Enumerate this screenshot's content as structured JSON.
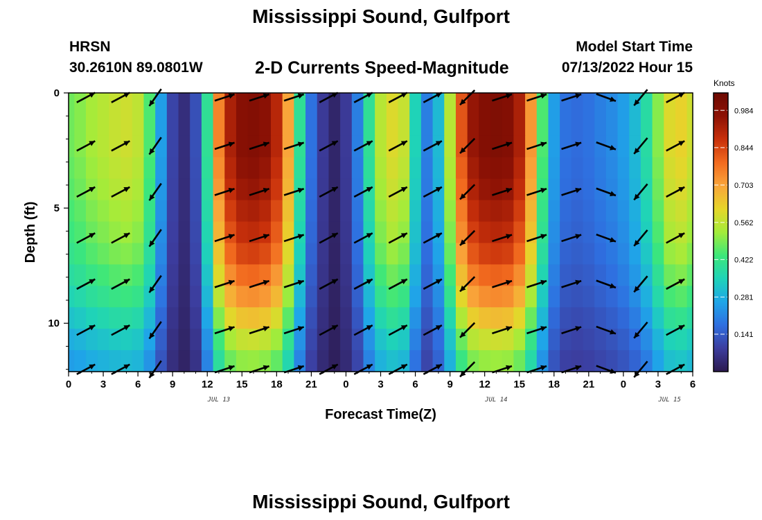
{
  "header": {
    "title": "Mississippi Sound, Gulfport",
    "station": "HRSN",
    "coords": "30.2610N  89.0801W",
    "plot_title": "2-D Currents Speed-Magnitude",
    "start_label": "Model Start Time",
    "start_value": "07/13/2022 Hour 15"
  },
  "footer": {
    "title": "Mississippi Sound, Gulfport"
  },
  "chart_data": {
    "type": "heatmap",
    "title": "2-D Currents Speed-Magnitude",
    "xlabel": "Forecast Time(Z)",
    "ylabel": "Depth (ft)",
    "x_ticks": [
      "0",
      "3",
      "6",
      "9",
      "12",
      "15",
      "18",
      "21",
      "0",
      "3",
      "6",
      "9",
      "12",
      "15",
      "18",
      "21",
      "0",
      "3",
      "6"
    ],
    "y_ticks": [
      "0",
      "5",
      "10"
    ],
    "date_labels": [
      {
        "label": "JUL 13",
        "hour": 13
      },
      {
        "label": "JUL 14",
        "hour": 37
      },
      {
        "label": "JUL 15",
        "hour": 52
      }
    ],
    "x_range_hours": [
      0,
      54
    ],
    "y_range_ft": [
      0,
      12.1
    ],
    "colorbar": {
      "unit": "Knots",
      "ticks": [
        "0.984",
        "0.844",
        "0.703",
        "0.562",
        "0.422",
        "0.281",
        "0.141"
      ],
      "range": [
        0.0,
        1.05
      ],
      "colors": [
        "#2c1a4f",
        "#3c3d9e",
        "#2f6fe0",
        "#1fa6e8",
        "#1fd3b8",
        "#3de77a",
        "#a3ec3a",
        "#e6d62a",
        "#f9a53a",
        "#f26b1f",
        "#c8300b",
        "#8d1205",
        "#6d0a02"
      ]
    },
    "hourly_surface_speed_knots": [
      0.48,
      0.5,
      0.53,
      0.55,
      0.57,
      0.58,
      0.56,
      0.45,
      0.25,
      0.1,
      0.05,
      0.12,
      0.4,
      0.75,
      0.92,
      0.98,
      0.99,
      0.97,
      0.9,
      0.7,
      0.4,
      0.18,
      0.08,
      0.03,
      0.08,
      0.2,
      0.4,
      0.55,
      0.6,
      0.57,
      0.35,
      0.2,
      0.3,
      0.55,
      0.82,
      0.95,
      0.99,
      1.0,
      0.99,
      0.92,
      0.72,
      0.45,
      0.25,
      0.18,
      0.17,
      0.18,
      0.2,
      0.22,
      0.25,
      0.3,
      0.38,
      0.5,
      0.6,
      0.62,
      0.58
    ],
    "depth_factor": [
      1.0,
      1.0,
      1.0,
      0.98,
      0.96,
      0.93,
      0.9,
      0.86,
      0.8,
      0.74,
      0.66,
      0.58,
      0.52
    ],
    "vectors": {
      "times_hours": [
        1.5,
        4.5,
        7.5,
        13.5,
        16.5,
        19.5,
        22.5,
        25.5,
        28.5,
        31.5,
        34.5,
        37.5,
        40.5,
        43.5,
        46.5,
        49.5,
        52.5
      ],
      "depths_ft": [
        0.2,
        2.3,
        4.3,
        6.3,
        8.3,
        10.3,
        12.0
      ],
      "direction_deg_by_time": [
        62,
        62,
        215,
        72,
        72,
        72,
        62,
        62,
        62,
        62,
        225,
        72,
        72,
        72,
        110,
        220,
        62
      ],
      "note_direction_deg": "compass degrees the arrow points to (0 = up, 90 = right)"
    }
  }
}
